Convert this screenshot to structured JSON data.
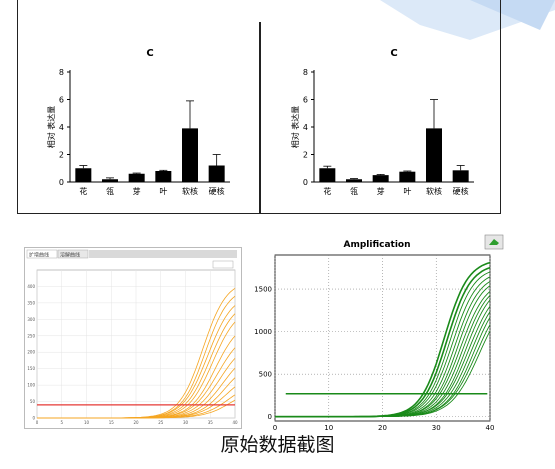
{
  "caption": "原始数据截图",
  "chart_data": [
    {
      "type": "bar",
      "title": "C",
      "ylabel": "相对  表达量",
      "categories": [
        "花",
        "瓴",
        "芽",
        "叶",
        "软核",
        "硬核"
      ],
      "values": [
        1.0,
        0.2,
        0.6,
        0.8,
        3.9,
        1.2
      ],
      "errors": [
        0.2,
        0.1,
        0.05,
        0.05,
        2.0,
        0.8
      ],
      "ylim": [
        0,
        8
      ],
      "yticks": [
        0,
        2,
        4,
        6,
        8
      ],
      "color": "#000000"
    },
    {
      "type": "bar",
      "title": "C",
      "ylabel": "相对  表达量",
      "categories": [
        "花",
        "瓴",
        "芽",
        "叶",
        "软核",
        "硬核"
      ],
      "values": [
        1.0,
        0.2,
        0.5,
        0.75,
        3.9,
        0.85
      ],
      "errors": [
        0.15,
        0.05,
        0.05,
        0.05,
        2.1,
        0.35
      ],
      "ylim": [
        0,
        8
      ],
      "yticks": [
        0,
        2,
        4,
        6,
        8
      ],
      "color": "#000000"
    },
    {
      "type": "line",
      "tabs": [
        "扩增曲线",
        "溶解曲线"
      ],
      "xlim": [
        0,
        40
      ],
      "xticks": [
        0,
        5,
        10,
        15,
        20,
        25,
        30,
        35,
        40
      ],
      "ylim": [
        0,
        450
      ],
      "yticks": [
        0,
        50,
        100,
        150,
        200,
        250,
        300,
        350,
        400
      ],
      "threshold": 40,
      "threshold_color": "#e53935",
      "series_color": "#f5a623",
      "curves": [
        {
          "mid": 33.5,
          "k": 0.42,
          "max": 420
        },
        {
          "mid": 34.0,
          "k": 0.42,
          "max": 400
        },
        {
          "mid": 34.5,
          "k": 0.4,
          "max": 380
        },
        {
          "mid": 35.0,
          "k": 0.4,
          "max": 360
        },
        {
          "mid": 35.5,
          "k": 0.4,
          "max": 340
        },
        {
          "mid": 36.0,
          "k": 0.4,
          "max": 300
        },
        {
          "mid": 36.5,
          "k": 0.38,
          "max": 270
        },
        {
          "mid": 37.0,
          "k": 0.38,
          "max": 240
        },
        {
          "mid": 37.5,
          "k": 0.38,
          "max": 210
        },
        {
          "mid": 38.0,
          "k": 0.38,
          "max": 180
        },
        {
          "mid": 38.5,
          "k": 0.36,
          "max": 150
        },
        {
          "mid": 39.0,
          "k": 0.36,
          "max": 120
        },
        {
          "mid": 39.5,
          "k": 0.36,
          "max": 100
        }
      ]
    },
    {
      "type": "line",
      "title": "Amplification",
      "xlim": [
        0,
        40
      ],
      "xticks": [
        0,
        10,
        20,
        30,
        40
      ],
      "ylim": [
        -50,
        1900
      ],
      "yticks": [
        0,
        500,
        1000,
        1500
      ],
      "threshold": 270,
      "series_color": "#1a8a1a",
      "curves": [
        {
          "mid": 31.5,
          "k": 0.45,
          "max": 1850
        },
        {
          "mid": 32.0,
          "k": 0.45,
          "max": 1800
        },
        {
          "mid": 32.5,
          "k": 0.45,
          "max": 1760
        },
        {
          "mid": 33.0,
          "k": 0.44,
          "max": 1720
        },
        {
          "mid": 33.5,
          "k": 0.44,
          "max": 1680
        },
        {
          "mid": 34.0,
          "k": 0.44,
          "max": 1650
        },
        {
          "mid": 34.5,
          "k": 0.42,
          "max": 1620
        },
        {
          "mid": 35.0,
          "k": 0.42,
          "max": 1600
        },
        {
          "mid": 35.5,
          "k": 0.42,
          "max": 1580
        },
        {
          "mid": 36.0,
          "k": 0.4,
          "max": 1560
        },
        {
          "mid": 36.5,
          "k": 0.4,
          "max": 1540
        },
        {
          "mid": 37.0,
          "k": 0.4,
          "max": 1520
        },
        {
          "mid": 37.5,
          "k": 0.38,
          "max": 1500
        },
        {
          "mid": 38.0,
          "k": 0.38,
          "max": 1480
        }
      ]
    }
  ]
}
